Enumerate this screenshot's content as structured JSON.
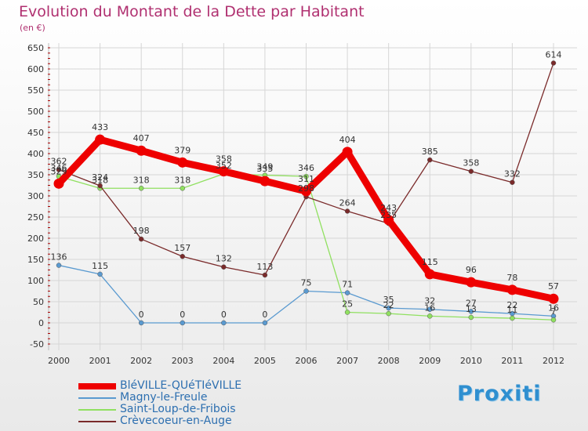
{
  "title": "Evolution du Montant de la Dette par Habitant",
  "subtitle": "(en €)",
  "logo_text": "Proxiti",
  "chart_data": {
    "type": "line",
    "x": [
      "2000",
      "2001",
      "2002",
      "2003",
      "2004",
      "2005",
      "2006",
      "2007",
      "2008",
      "2009",
      "2010",
      "2011",
      "2012"
    ],
    "ylim": [
      -50,
      650
    ],
    "yticks": [
      -50,
      0,
      50,
      100,
      150,
      200,
      250,
      300,
      350,
      400,
      450,
      500,
      550,
      600,
      650
    ],
    "grid": true,
    "legend_position": "bottom-left",
    "series": [
      {
        "name": "BléVILLE-QUéTIéVILLE",
        "color": "#ee0000",
        "values": [
          329,
          433,
          407,
          379,
          358,
          335,
          311,
          404,
          243,
          115,
          96,
          78,
          57
        ]
      },
      {
        "name": "Magny-le-Freule",
        "color": "#5a9ad0",
        "values": [
          136,
          115,
          0,
          0,
          0,
          0,
          75,
          71,
          35,
          32,
          27,
          22,
          16
        ]
      },
      {
        "name": "Saint-Loup-de-Fribois",
        "color": "#90e060",
        "values": [
          346,
          318,
          318,
          318,
          352,
          349,
          346,
          25,
          22,
          16,
          13,
          11,
          7
        ]
      },
      {
        "name": "Crèvecoeur-en-Auge",
        "color": "#7a2a2a",
        "values": [
          362,
          324,
          198,
          157,
          132,
          113,
          298,
          264,
          235,
          385,
          358,
          332,
          614
        ]
      }
    ]
  }
}
